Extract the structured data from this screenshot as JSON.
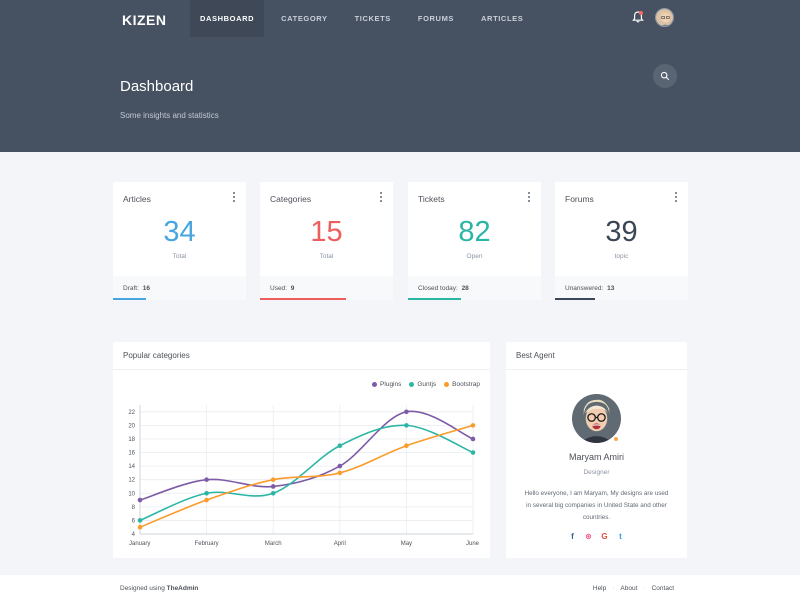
{
  "brand": "KIZEN",
  "nav": [
    {
      "label": "DASHBOARD",
      "active": true
    },
    {
      "label": "CATEGORY"
    },
    {
      "label": "TICKETS"
    },
    {
      "label": "FORUMS"
    },
    {
      "label": "ARTICLES"
    }
  ],
  "header": {
    "title": "Dashboard",
    "subtitle": "Some insights and statistics"
  },
  "stats": [
    {
      "title": "Articles",
      "value": "34",
      "label": "Total",
      "foot_label": "Draft:",
      "foot_value": "16",
      "color": "#48a5e0",
      "progress": 0.25
    },
    {
      "title": "Categories",
      "value": "15",
      "label": "Total",
      "foot_label": "Used:",
      "foot_value": "9",
      "color": "#ef5e5e",
      "progress": 0.65
    },
    {
      "title": "Tickets",
      "value": "82",
      "label": "Open",
      "foot_label": "Closed today:",
      "foot_value": "28",
      "color": "#2bb5a5",
      "progress": 0.4
    },
    {
      "title": "Forums",
      "value": "39",
      "label": "topic",
      "foot_label": "Unanswered:",
      "foot_value": "13",
      "color": "#3b4657",
      "progress": 0.3
    }
  ],
  "popular": {
    "title": "Popular categories"
  },
  "chart_data": {
    "type": "line",
    "categories": [
      "January",
      "February",
      "March",
      "April",
      "May",
      "June"
    ],
    "series": [
      {
        "name": "Plugins",
        "color": "#7d5ba6",
        "values": [
          9,
          12,
          11,
          14,
          22,
          18
        ]
      },
      {
        "name": "Guntjs",
        "color": "#2bb5a5",
        "values": [
          6,
          10,
          10,
          17,
          20,
          16
        ]
      },
      {
        "name": "Bootstrap",
        "color": "#fa9b2a",
        "values": [
          5,
          9,
          12,
          13,
          17,
          20
        ]
      }
    ],
    "yticks": [
      4,
      6,
      8,
      10,
      12,
      14,
      16,
      18,
      20,
      22
    ],
    "ylim": [
      4,
      23
    ],
    "legend": "top-right",
    "grid": true
  },
  "agent": {
    "title": "Best Agent",
    "name": "Maryam Amiri",
    "role": "Designer",
    "bio": "Hello everyone, I am Maryam, My designs are used in several big companies in United State and other countries.",
    "social": [
      {
        "glyph": "f",
        "icon": "facebook-icon",
        "color": "#3b5998"
      },
      {
        "glyph": "⊛",
        "icon": "dribbble-icon",
        "color": "#ea4c89"
      },
      {
        "glyph": "G",
        "icon": "google-icon",
        "color": "#dd4b39"
      },
      {
        "glyph": "t",
        "icon": "twitter-icon",
        "color": "#1da1f2"
      }
    ]
  },
  "footer": {
    "designed": "Designed using",
    "brand": "TheAdmin",
    "links": [
      "Help",
      "About",
      "Contact"
    ]
  }
}
